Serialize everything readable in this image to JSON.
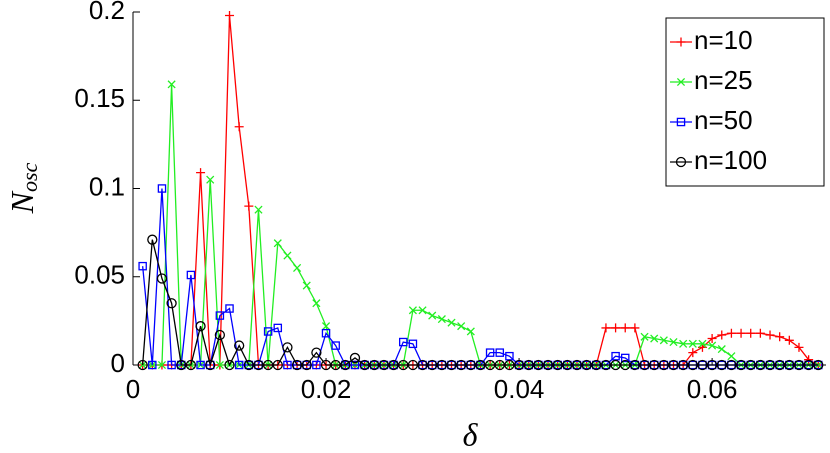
{
  "chart_data": {
    "type": "line",
    "xlabel": "δ",
    "ylabel": "N",
    "ylabel_sub": "osc",
    "x": [
      0.001,
      0.002,
      0.003,
      0.004,
      0.005,
      0.006,
      0.007,
      0.008,
      0.009,
      0.01,
      0.011,
      0.012,
      0.013,
      0.014,
      0.015,
      0.016,
      0.017,
      0.018,
      0.019,
      0.02,
      0.021,
      0.022,
      0.023,
      0.024,
      0.025,
      0.026,
      0.027,
      0.028,
      0.029,
      0.03,
      0.031,
      0.032,
      0.033,
      0.034,
      0.035,
      0.036,
      0.037,
      0.038,
      0.039,
      0.04,
      0.041,
      0.042,
      0.043,
      0.044,
      0.045,
      0.046,
      0.047,
      0.048,
      0.049,
      0.05,
      0.051,
      0.052,
      0.053,
      0.054,
      0.055,
      0.056,
      0.057,
      0.058,
      0.059,
      0.06,
      0.061,
      0.062,
      0.063,
      0.064,
      0.065,
      0.066,
      0.067,
      0.068,
      0.069,
      0.07,
      0.071
    ],
    "series": [
      {
        "name": "n=10",
        "color": "#ff0000",
        "marker": "plus",
        "values": [
          0,
          0,
          0,
          0,
          0,
          0,
          0.109,
          0,
          0,
          0.198,
          0.135,
          0.09,
          0,
          0,
          0,
          0,
          0,
          0,
          0,
          0,
          0,
          0,
          0,
          0,
          0,
          0,
          0,
          0,
          0,
          0,
          0,
          0,
          0,
          0,
          0,
          0,
          0,
          0,
          0,
          0,
          0,
          0,
          0,
          0,
          0,
          0,
          0,
          0,
          0.021,
          0.021,
          0.021,
          0.021,
          0,
          0,
          0,
          0,
          0,
          0.007,
          0.01,
          0.015,
          0.017,
          0.018,
          0.018,
          0.018,
          0.018,
          0.017,
          0.016,
          0.014,
          0.01,
          0.003,
          0
        ]
      },
      {
        "name": "n=25",
        "color": "#22ee22",
        "marker": "cross",
        "values": [
          0,
          0,
          0,
          0.159,
          0,
          0,
          0,
          0.105,
          0,
          0,
          0,
          0,
          0.088,
          0,
          0.069,
          0.062,
          0.055,
          0.045,
          0.035,
          0.022,
          0,
          0,
          0,
          0,
          0,
          0,
          0,
          0,
          0.031,
          0.031,
          0.028,
          0.026,
          0.024,
          0.022,
          0.019,
          0,
          0,
          0,
          0,
          0,
          0,
          0,
          0,
          0,
          0,
          0,
          0,
          0,
          0,
          0,
          0,
          0,
          0.016,
          0.015,
          0.014,
          0.013,
          0.012,
          0.012,
          0.012,
          0.011,
          0.009,
          0.005,
          0,
          0,
          0,
          0,
          0,
          0,
          0,
          0,
          0
        ]
      },
      {
        "name": "n=50",
        "color": "#0000ff",
        "marker": "square",
        "values": [
          0.056,
          0,
          0.1,
          0,
          0,
          0.051,
          0,
          0,
          0.028,
          0.032,
          0,
          0,
          0,
          0.019,
          0.021,
          0,
          0,
          0,
          0,
          0.018,
          0.011,
          0,
          0,
          0,
          0,
          0,
          0,
          0.013,
          0.012,
          0,
          0,
          0,
          0,
          0,
          0,
          0,
          0.007,
          0.007,
          0.005,
          0,
          0,
          0,
          0,
          0,
          0,
          0,
          0,
          0,
          0,
          0.005,
          0.004,
          0,
          0,
          0,
          0,
          0,
          0,
          0,
          0,
          0,
          0,
          0,
          0,
          0,
          0,
          0,
          0,
          0,
          0,
          0,
          0
        ]
      },
      {
        "name": "n=100",
        "color": "#000000",
        "marker": "circle",
        "values": [
          0,
          0.071,
          0.049,
          0.035,
          0,
          0,
          0.022,
          0,
          0.017,
          0,
          0.011,
          0,
          0,
          0,
          0,
          0.01,
          0,
          0,
          0.007,
          0,
          0,
          0,
          0.004,
          0,
          0,
          0,
          0,
          0,
          0,
          0,
          0,
          0,
          0,
          0,
          0,
          0,
          0,
          0,
          0,
          0,
          0,
          0,
          0,
          0,
          0,
          0,
          0,
          0,
          0,
          0,
          0,
          0,
          0,
          0,
          0,
          0,
          0,
          0,
          0,
          0,
          0,
          0,
          0,
          0,
          0,
          0,
          0,
          0,
          0,
          0,
          0
        ]
      }
    ],
    "xlim": [
      0,
      0.0718
    ],
    "ylim": [
      0,
      0.2
    ],
    "xticks": [
      0,
      0.02,
      0.04,
      0.06
    ],
    "yticks": [
      0,
      0.05,
      0.1,
      0.15,
      0.2
    ],
    "grid": false,
    "legend": "upper right"
  }
}
